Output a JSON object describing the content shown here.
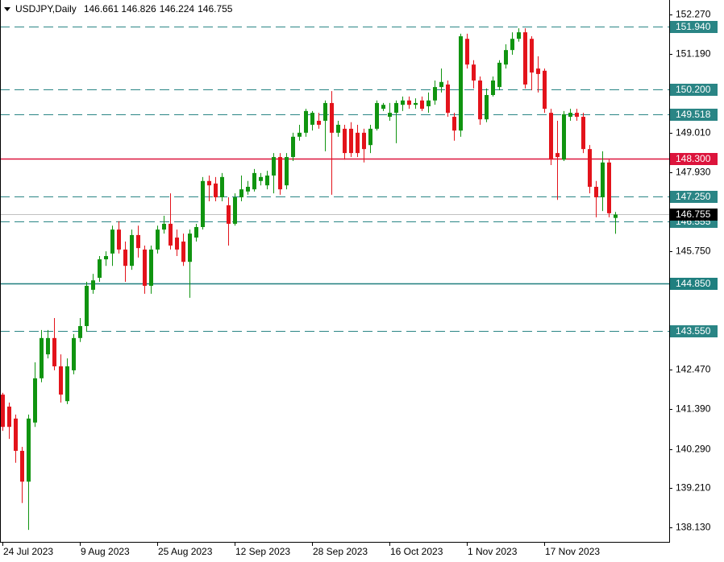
{
  "chart_data": {
    "type": "candlestick",
    "symbol": "USDJPY,Daily",
    "categories": [
      "24 Jul 2023",
      null,
      null,
      null,
      null,
      null,
      null,
      null,
      null,
      null,
      null,
      null,
      "9 Aug 2023",
      null,
      null,
      null,
      null,
      null,
      null,
      null,
      null,
      null,
      null,
      null,
      "25 Aug 2023",
      null,
      null,
      null,
      null,
      null,
      null,
      null,
      null,
      null,
      null,
      null,
      "12 Sep 2023",
      null,
      null,
      null,
      null,
      null,
      null,
      null,
      null,
      null,
      null,
      null,
      "28 Sep 2023",
      null,
      null,
      null,
      null,
      null,
      null,
      null,
      null,
      null,
      null,
      null,
      "16 Oct 2023",
      null,
      null,
      null,
      null,
      null,
      null,
      null,
      null,
      null,
      null,
      null,
      "1 Nov 2023",
      null,
      null,
      null,
      null,
      null,
      null,
      null,
      null,
      null,
      null,
      null,
      "17 Nov 2023",
      null,
      null,
      null,
      null,
      null,
      null,
      null,
      null,
      null,
      null,
      null
    ],
    "open": [
      141.79,
      141.46,
      141.13,
      140.24,
      139.39,
      141.02,
      142.24,
      142.9,
      143.35,
      142.57,
      141.61,
      142.46,
      143.35,
      143.68,
      144.68,
      145.01,
      145.52,
      145.68,
      146.34,
      145.79,
      145.34,
      146.19,
      145.79,
      144.79,
      145.79,
      146.34,
      146.5,
      146.12,
      146.01,
      145.45,
      146.12,
      146.41,
      147.68,
      147.61,
      147.23,
      147.01,
      146.5,
      147.23,
      147.39,
      147.45,
      147.68,
      147.56,
      147.83,
      148.34,
      147.56,
      148.34,
      148.9,
      149.01,
      149.23,
      149.34,
      149.34,
      149.83,
      149.01,
      149.12,
      149.12,
      149.01,
      149.01,
      148.67,
      149.12,
      149.67,
      149.45,
      149.56,
      149.78,
      149.9,
      149.78,
      149.9,
      149.74,
      149.9,
      150.27,
      150.34,
      149.45,
      149.07,
      151.6,
      150.89,
      150.45,
      149.38,
      150.05,
      150.27,
      150.89,
      151.29,
      151.6,
      151.78,
      151.6,
      150.78,
      150.72,
      149.56,
      148.45,
      148.27,
      149.45,
      149.56,
      149.45,
      148.56,
      147.52,
      147.23,
      148.19,
      146.661
    ],
    "high": [
      141.84,
      141.57,
      141.24,
      140.35,
      141.24,
      142.68,
      143.57,
      143.57,
      143.9,
      142.9,
      142.79,
      143.46,
      143.9,
      144.9,
      145.12,
      145.61,
      145.74,
      146.45,
      146.57,
      146.01,
      146.34,
      146.45,
      145.9,
      145.9,
      146.45,
      146.72,
      147.34,
      146.34,
      146.23,
      146.34,
      146.5,
      147.79,
      147.83,
      147.79,
      147.9,
      147.23,
      147.34,
      147.83,
      147.68,
      148.01,
      147.9,
      147.96,
      148.45,
      148.45,
      148.45,
      149.01,
      149.23,
      149.67,
      149.61,
      149.56,
      149.9,
      150.16,
      149.34,
      149.23,
      149.3,
      149.23,
      149.12,
      149.23,
      149.9,
      149.83,
      149.83,
      149.9,
      150.01,
      150.01,
      149.96,
      150.01,
      150.12,
      150.45,
      150.78,
      150.45,
      149.56,
      151.74,
      151.74,
      151.01,
      150.56,
      150.23,
      150.56,
      151.01,
      151.45,
      151.78,
      151.89,
      151.89,
      151.67,
      151.12,
      150.78,
      149.67,
      149.34,
      149.61,
      149.67,
      149.67,
      149.56,
      148.67,
      147.68,
      148.5,
      148.27,
      146.826
    ],
    "low": [
      140.79,
      140.57,
      139.91,
      138.8,
      138.06,
      140.9,
      142.13,
      142.79,
      142.46,
      141.57,
      141.53,
      142.35,
      143.24,
      143.52,
      144.57,
      144.9,
      145.34,
      145.34,
      145.68,
      144.9,
      145.23,
      145.57,
      144.57,
      144.57,
      145.68,
      146.23,
      145.79,
      145.61,
      145.34,
      144.46,
      146.01,
      146.34,
      147.12,
      147.12,
      147.12,
      145.9,
      146.45,
      147.12,
      147.3,
      147.39,
      147.56,
      147.45,
      147.34,
      147.3,
      147.45,
      148.23,
      148.79,
      148.9,
      149.07,
      149.12,
      148.5,
      147.3,
      148.9,
      148.27,
      148.34,
      148.34,
      148.19,
      148.45,
      149.07,
      149.61,
      149.34,
      148.72,
      149.61,
      149.67,
      149.67,
      149.61,
      149.56,
      149.78,
      150.12,
      149.45,
      148.79,
      148.9,
      150.78,
      150.23,
      149.23,
      149.3,
      150.01,
      150.18,
      150.78,
      151.16,
      151.52,
      150.23,
      150.18,
      150.12,
      149.56,
      148.12,
      147.16,
      148.23,
      149.34,
      149.34,
      148.45,
      147.34,
      146.68,
      146.85,
      146.68,
      146.224
    ],
    "close": [
      140.9,
      140.9,
      140.24,
      139.39,
      141.13,
      142.24,
      143.35,
      143.35,
      142.57,
      141.79,
      142.57,
      143.35,
      143.68,
      144.79,
      144.94,
      145.52,
      145.61,
      146.34,
      145.79,
      145.34,
      146.19,
      145.83,
      144.79,
      145.79,
      146.34,
      146.5,
      145.9,
      145.79,
      145.45,
      146.23,
      146.41,
      147.68,
      147.56,
      147.23,
      147.79,
      146.5,
      147.23,
      147.45,
      147.52,
      147.9,
      147.79,
      147.83,
      148.34,
      147.45,
      148.34,
      148.9,
      149.01,
      149.61,
      149.56,
      149.23,
      149.83,
      149.01,
      149.23,
      148.45,
      148.45,
      148.45,
      148.56,
      149.12,
      149.83,
      149.78,
      149.56,
      149.83,
      149.9,
      149.78,
      149.83,
      149.67,
      149.9,
      150.27,
      150.41,
      149.56,
      149.07,
      151.67,
      150.89,
      150.45,
      149.38,
      150.05,
      150.45,
      150.94,
      151.29,
      151.6,
      151.78,
      150.34,
      150.67,
      150.63,
      149.67,
      148.27,
      148.34,
      149.52,
      149.56,
      149.45,
      148.56,
      147.52,
      147.23,
      148.19,
      146.79,
      146.755
    ],
    "color_up": "#109410",
    "color_down": "#e3131b",
    "ylim": [
      137.73,
      152.67
    ],
    "yticks": [
      {
        "value": 152.27,
        "label": "152.270"
      },
      {
        "value": 151.19,
        "label": "151.190"
      },
      {
        "value": 149.01,
        "label": "149.010"
      },
      {
        "value": 147.93,
        "label": "147.930"
      },
      {
        "value": 145.75,
        "label": "145.750"
      },
      {
        "value": 142.47,
        "label": "142.470"
      },
      {
        "value": 141.39,
        "label": "141.390"
      },
      {
        "value": 140.29,
        "label": "140.290"
      },
      {
        "value": 139.21,
        "label": "139.210"
      },
      {
        "value": 138.13,
        "label": "138.130"
      }
    ],
    "grid": false,
    "levels": [
      {
        "value": 151.94,
        "label": "151.940",
        "color": "#2a8585",
        "style": "dashed"
      },
      {
        "value": 150.2,
        "label": "150.200",
        "color": "#2a8585",
        "style": "dashed"
      },
      {
        "value": 149.518,
        "color": "#2a8585",
        "style": "dashed"
      },
      {
        "value": 148.3,
        "label": "148.300",
        "color": "#dc143c",
        "style": "solid"
      },
      {
        "value": 147.25,
        "label": "147.250",
        "color": "#2a8585",
        "style": "dashed"
      },
      {
        "value": 146.555,
        "color": "#2a8585",
        "style": "dashed"
      },
      {
        "value": 144.85,
        "label": "144.850",
        "color": "#1f7f7f",
        "style": "solid"
      },
      {
        "value": 143.55,
        "label": "143.550",
        "color": "#2a8585",
        "style": "dashed"
      }
    ]
  }
}
